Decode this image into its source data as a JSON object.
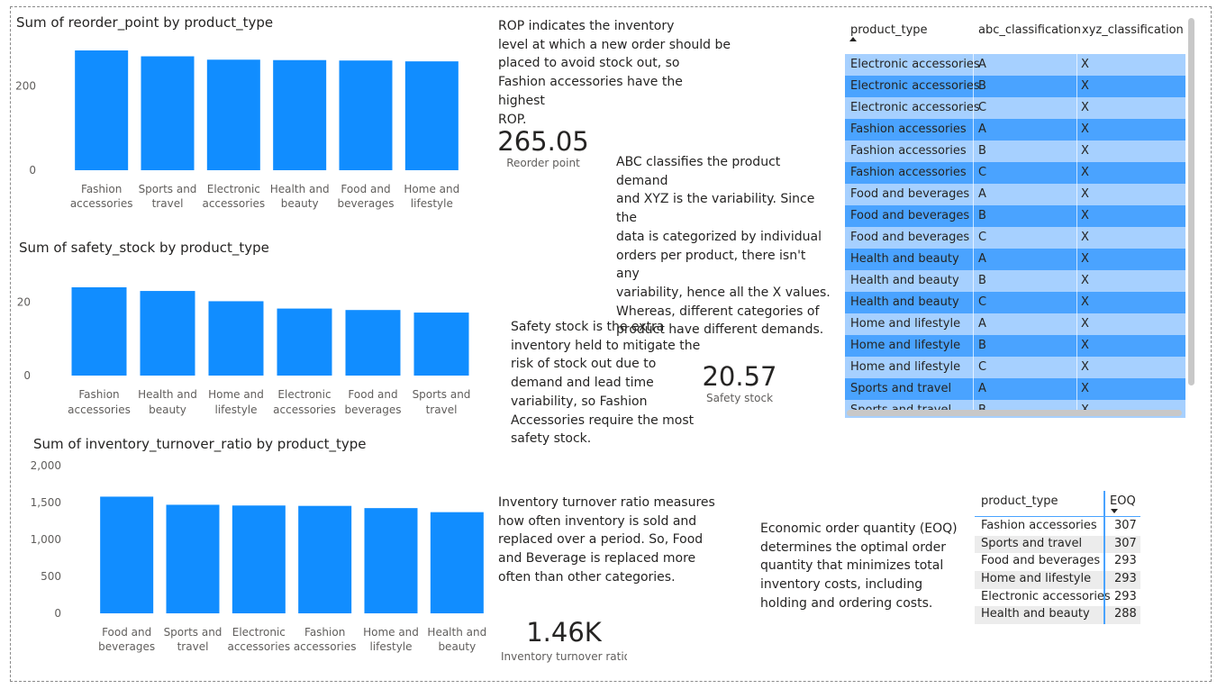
{
  "chart_data": [
    {
      "type": "bar",
      "title": "Sum of reorder_point by product_type",
      "categories": [
        "Fashion accessories",
        "Sports and travel",
        "Electronic accessories",
        "Health and beauty",
        "Food and beverages",
        "Home and lifestyle"
      ],
      "values": [
        285,
        271,
        263,
        262,
        261,
        259
      ],
      "ylim": [
        0,
        285
      ],
      "yticks": [
        "0",
        "200"
      ],
      "ytick_values": [
        0,
        200
      ],
      "xlabel": "",
      "ylabel": "",
      "color": "#118dff",
      "grid": false
    },
    {
      "type": "bar",
      "title": "Sum of safety_stock by product_type",
      "categories": [
        "Fashion accessories",
        "Health and beauty",
        "Home and lifestyle",
        "Electronic accessories",
        "Food and beverages",
        "Sports and travel"
      ],
      "values": [
        24.1,
        23.1,
        20.3,
        18.3,
        17.9,
        17.2
      ],
      "ylim": [
        0,
        24.1
      ],
      "yticks": [
        "0",
        "20"
      ],
      "ytick_values": [
        0,
        20
      ],
      "xlabel": "",
      "ylabel": "",
      "color": "#118dff",
      "grid": false
    },
    {
      "type": "bar",
      "title": "Sum of inventory_turnover_ratio by product_type",
      "categories": [
        "Food and beverages",
        "Sports and travel",
        "Electronic accessories",
        "Fashion accessories",
        "Home and lifestyle",
        "Health and beauty"
      ],
      "values": [
        1580,
        1470,
        1460,
        1455,
        1425,
        1370
      ],
      "ylim": [
        0,
        2000
      ],
      "yticks": [
        "0",
        "500",
        "1,000",
        "1,500",
        "2,000"
      ],
      "ytick_values": [
        0,
        500,
        1000,
        1500,
        2000
      ],
      "xlabel": "",
      "ylabel": "",
      "color": "#118dff",
      "grid": false
    }
  ],
  "kpis": {
    "rop": {
      "value": "265.05",
      "label": "Reorder point"
    },
    "safety": {
      "value": "20.57",
      "label": "Safety stock"
    },
    "turnover": {
      "value": "1.46K",
      "label": "Inventory turnover ratio"
    }
  },
  "notes": {
    "rop": [
      "ROP indicates the inventory",
      "level at which a new order should be",
      "placed to avoid stock out, so",
      "Fashion accessories have the highest",
      "ROP."
    ],
    "abc": [
      "ABC classifies the product demand",
      "and XYZ is the variability. Since the",
      "data is categorized by individual",
      "orders per product, there isn't any",
      "variability, hence all the X values.",
      "Whereas, different categories of",
      "product have different demands."
    ],
    "safety": [
      "Safety stock is the extra",
      "inventory held to mitigate the",
      "risk of stock out due to",
      "demand and lead time",
      "variability, so Fashion",
      "Accessories require the most",
      "safety stock."
    ],
    "turnover": [
      "Inventory turnover ratio measures",
      "how often inventory is sold and",
      "replaced over a period. So, Food",
      "and Beverage is replaced more",
      "often than other categories."
    ],
    "eoq": [
      "Economic order quantity (EOQ)",
      "determines the optimal order",
      "quantity that minimizes total",
      "inventory costs, including",
      "holding and ordering costs."
    ]
  },
  "classification_table": {
    "headers": [
      "product_type",
      "abc_classification",
      "xyz_classification"
    ],
    "rows": [
      [
        "Electronic accessories",
        "A",
        "X"
      ],
      [
        "Electronic accessories",
        "B",
        "X"
      ],
      [
        "Electronic accessories",
        "C",
        "X"
      ],
      [
        "Fashion accessories",
        "A",
        "X"
      ],
      [
        "Fashion accessories",
        "B",
        "X"
      ],
      [
        "Fashion accessories",
        "C",
        "X"
      ],
      [
        "Food and beverages",
        "A",
        "X"
      ],
      [
        "Food and beverages",
        "B",
        "X"
      ],
      [
        "Food and beverages",
        "C",
        "X"
      ],
      [
        "Health and beauty",
        "A",
        "X"
      ],
      [
        "Health and beauty",
        "B",
        "X"
      ],
      [
        "Health and beauty",
        "C",
        "X"
      ],
      [
        "Home and lifestyle",
        "A",
        "X"
      ],
      [
        "Home and lifestyle",
        "B",
        "X"
      ],
      [
        "Home and lifestyle",
        "C",
        "X"
      ],
      [
        "Sports and travel",
        "A",
        "X"
      ],
      [
        "Sports and travel",
        "B",
        "X"
      ]
    ],
    "row_colors": {
      "light": "#a6d0ff",
      "dark": "#4aa3ff"
    }
  },
  "eoq_table": {
    "headers": [
      "product_type",
      "EOQ"
    ],
    "rows": [
      [
        "Fashion accessories",
        "307"
      ],
      [
        "Sports and travel",
        "307"
      ],
      [
        "Food and beverages",
        "293"
      ],
      [
        "Home and lifestyle",
        "293"
      ],
      [
        "Electronic accessories",
        "293"
      ],
      [
        "Health and beauty",
        "288"
      ]
    ]
  }
}
